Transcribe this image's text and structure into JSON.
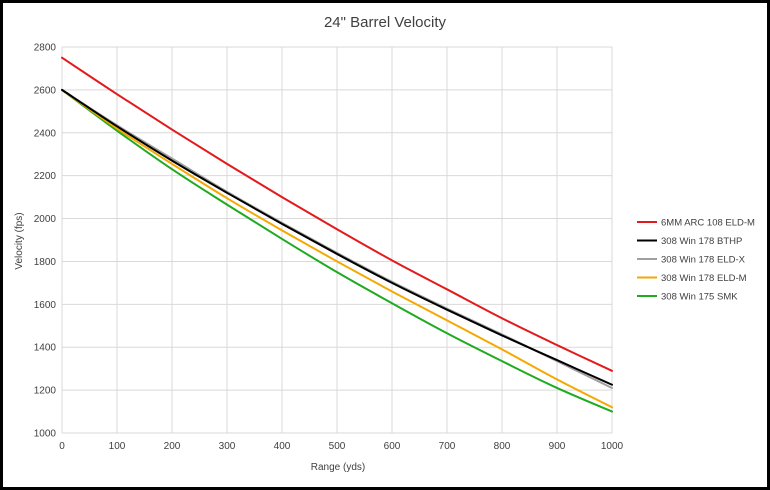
{
  "chart_data": {
    "type": "line",
    "title": "24\" Barrel Velocity",
    "xlabel": "Range (yds)",
    "ylabel": "Velocity (fps)",
    "xlim": [
      0,
      1000
    ],
    "ylim": [
      1000,
      2800
    ],
    "xticks": [
      0,
      100,
      200,
      300,
      400,
      500,
      600,
      700,
      800,
      900,
      1000
    ],
    "yticks": [
      1000,
      1200,
      1400,
      1600,
      1800,
      2000,
      2200,
      2400,
      2600,
      2800
    ],
    "grid": true,
    "legend_position": "right",
    "x": [
      0,
      100,
      200,
      300,
      400,
      500,
      600,
      700,
      800,
      900,
      1000
    ],
    "series": [
      {
        "name": "6MM ARC 108 ELD-M",
        "color": "#e31a1c",
        "values": [
          2750,
          2580,
          2415,
          2255,
          2100,
          1950,
          1805,
          1670,
          1535,
          1410,
          1290
        ]
      },
      {
        "name": "308 Win 178 BTHP",
        "color": "#000000",
        "values": [
          2600,
          2430,
          2270,
          2120,
          1975,
          1835,
          1700,
          1575,
          1455,
          1340,
          1225
        ]
      },
      {
        "name": "308 Win 178 ELD-X",
        "color": "#a0a0a0",
        "values": [
          2600,
          2435,
          2280,
          2125,
          1980,
          1840,
          1705,
          1580,
          1460,
          1335,
          1210
        ]
      },
      {
        "name": "308 Win 178 ELD-M",
        "color": "#f5a800",
        "values": [
          2600,
          2420,
          2255,
          2095,
          1945,
          1800,
          1660,
          1525,
          1390,
          1250,
          1120
        ]
      },
      {
        "name": "308 Win 175 SMK",
        "color": "#1faa1f",
        "values": [
          2600,
          2410,
          2230,
          2065,
          1905,
          1750,
          1605,
          1465,
          1335,
          1210,
          1100
        ]
      }
    ]
  }
}
